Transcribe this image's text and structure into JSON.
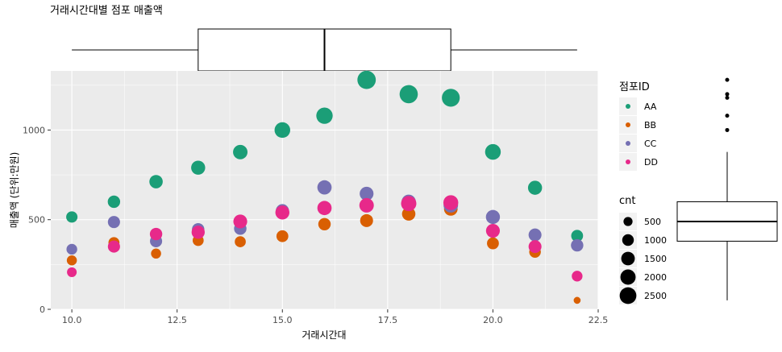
{
  "chart_data": {
    "type": "scatter",
    "title": "거래시간대별 점포 매출액",
    "xlabel": "거래시간대",
    "ylabel": "매출액 (단위:만원)",
    "xlim": [
      9.5,
      22.5
    ],
    "ylim": [
      0,
      1330
    ],
    "x_ticks": [
      10.0,
      12.5,
      15.0,
      17.5,
      20.0,
      22.5
    ],
    "x_tick_labels": [
      "10.0",
      "12.5",
      "15.0",
      "17.5",
      "20.0",
      "22.5"
    ],
    "y_ticks": [
      0,
      500,
      1000
    ],
    "y_tick_labels": [
      "0",
      "500",
      "1000"
    ],
    "grid": true,
    "legend_color_title": "점포ID",
    "legend_size_title": "cnt",
    "size_legend": [
      {
        "label": "500",
        "cnt": 500
      },
      {
        "label": "1000",
        "cnt": 1000
      },
      {
        "label": "1500",
        "cnt": 1500
      },
      {
        "label": "2000",
        "cnt": 2000
      },
      {
        "label": "2500",
        "cnt": 2500
      }
    ],
    "series": [
      {
        "name": "AA",
        "color": "#1b9e77",
        "points": [
          {
            "x": 10,
            "y": 515,
            "cnt": 700
          },
          {
            "x": 11,
            "y": 600,
            "cnt": 900
          },
          {
            "x": 12,
            "y": 712,
            "cnt": 1100
          },
          {
            "x": 13,
            "y": 790,
            "cnt": 1250
          },
          {
            "x": 14,
            "y": 877,
            "cnt": 1350
          },
          {
            "x": 15,
            "y": 1000,
            "cnt": 1650
          },
          {
            "x": 16,
            "y": 1080,
            "cnt": 1850
          },
          {
            "x": 17,
            "y": 1280,
            "cnt": 2450
          },
          {
            "x": 18,
            "y": 1200,
            "cnt": 2400
          },
          {
            "x": 19,
            "y": 1180,
            "cnt": 2300
          },
          {
            "x": 20,
            "y": 878,
            "cnt": 1650
          },
          {
            "x": 21,
            "y": 678,
            "cnt": 1250
          },
          {
            "x": 22,
            "y": 410,
            "cnt": 800
          }
        ]
      },
      {
        "name": "BB",
        "color": "#d95f02",
        "points": [
          {
            "x": 10,
            "y": 273,
            "cnt": 500
          },
          {
            "x": 11,
            "y": 372,
            "cnt": 650
          },
          {
            "x": 12,
            "y": 311,
            "cnt": 500
          },
          {
            "x": 13,
            "y": 384,
            "cnt": 650
          },
          {
            "x": 14,
            "y": 377,
            "cnt": 650
          },
          {
            "x": 15,
            "y": 408,
            "cnt": 800
          },
          {
            "x": 16,
            "y": 475,
            "cnt": 900
          },
          {
            "x": 17,
            "y": 495,
            "cnt": 1000
          },
          {
            "x": 18,
            "y": 532,
            "cnt": 1100
          },
          {
            "x": 19,
            "y": 560,
            "cnt": 1150
          },
          {
            "x": 20,
            "y": 368,
            "cnt": 800
          },
          {
            "x": 21,
            "y": 320,
            "cnt": 750
          },
          {
            "x": 22,
            "y": 50,
            "cnt": 150
          }
        ]
      },
      {
        "name": "CC",
        "color": "#7570b3",
        "points": [
          {
            "x": 10,
            "y": 335,
            "cnt": 600
          },
          {
            "x": 11,
            "y": 487,
            "cnt": 850
          },
          {
            "x": 12,
            "y": 380,
            "cnt": 850
          },
          {
            "x": 13,
            "y": 446,
            "cnt": 900
          },
          {
            "x": 14,
            "y": 450,
            "cnt": 900
          },
          {
            "x": 15,
            "y": 550,
            "cnt": 1050
          },
          {
            "x": 16,
            "y": 680,
            "cnt": 1300
          },
          {
            "x": 17,
            "y": 645,
            "cnt": 1200
          },
          {
            "x": 18,
            "y": 600,
            "cnt": 1300
          },
          {
            "x": 19,
            "y": 580,
            "cnt": 1350
          },
          {
            "x": 20,
            "y": 515,
            "cnt": 1250
          },
          {
            "x": 21,
            "y": 415,
            "cnt": 1000
          },
          {
            "x": 22,
            "y": 357,
            "cnt": 900
          }
        ]
      },
      {
        "name": "DD",
        "color": "#e7298a",
        "points": [
          {
            "x": 10,
            "y": 207,
            "cnt": 450
          },
          {
            "x": 11,
            "y": 350,
            "cnt": 850
          },
          {
            "x": 12,
            "y": 420,
            "cnt": 900
          },
          {
            "x": 13,
            "y": 430,
            "cnt": 1050
          },
          {
            "x": 14,
            "y": 490,
            "cnt": 1200
          },
          {
            "x": 15,
            "y": 540,
            "cnt": 1250
          },
          {
            "x": 16,
            "y": 565,
            "cnt": 1300
          },
          {
            "x": 17,
            "y": 580,
            "cnt": 1350
          },
          {
            "x": 18,
            "y": 590,
            "cnt": 1550
          },
          {
            "x": 19,
            "y": 595,
            "cnt": 1450
          },
          {
            "x": 20,
            "y": 438,
            "cnt": 1200
          },
          {
            "x": 21,
            "y": 350,
            "cnt": 1000
          },
          {
            "x": 22,
            "y": 185,
            "cnt": 600
          }
        ]
      }
    ],
    "x_boxplot": {
      "min": 10,
      "q1": 13,
      "median": 16,
      "q3": 19,
      "max": 22
    },
    "y_boxplot": {
      "min": 50,
      "q1": 380,
      "median": 490,
      "q3": 600,
      "max": 878,
      "outliers": [
        1000,
        1080,
        1180,
        1200,
        1280
      ]
    }
  }
}
